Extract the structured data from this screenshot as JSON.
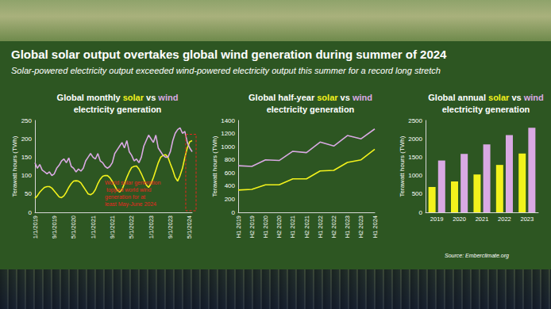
{
  "header": {
    "title": "Global solar output overtakes global wind generation during summer of 2024",
    "subtitle": "Solar-powered electricity output exceeded wind-powered electricity output this summer for a record long stretch"
  },
  "chart_data": [
    {
      "type": "line",
      "title": "Global monthly solar vs wind electricity generation",
      "y_label": "Terawatt hours (TWh)",
      "categories": [
        "1/1/2019",
        null,
        null,
        null,
        null,
        null,
        null,
        null,
        "9/1/2019",
        null,
        null,
        null,
        null,
        null,
        null,
        null,
        "5/1/2020",
        null,
        null,
        null,
        null,
        null,
        null,
        null,
        "1/1/2021",
        null,
        null,
        null,
        null,
        null,
        null,
        null,
        "9/1/2021",
        null,
        null,
        null,
        null,
        null,
        null,
        null,
        "5/1/2022",
        null,
        null,
        null,
        null,
        null,
        null,
        null,
        "1/1/2023",
        null,
        null,
        null,
        null,
        null,
        null,
        null,
        "9/1/2023",
        null,
        null,
        null,
        null,
        null,
        null,
        null,
        "5/1/2024",
        null
      ],
      "series": [
        {
          "name": "solar",
          "color": "#f2f21c",
          "values": [
            38,
            45,
            55,
            62,
            68,
            70,
            70,
            66,
            58,
            50,
            42,
            40,
            45,
            55,
            68,
            78,
            85,
            86,
            85,
            80,
            70,
            60,
            50,
            48,
            52,
            62,
            78,
            90,
            98,
            100,
            100,
            94,
            84,
            72,
            60,
            55,
            62,
            78,
            95,
            110,
            122,
            125,
            126,
            118,
            105,
            90,
            75,
            68,
            78,
            95,
            115,
            135,
            150,
            155,
            157,
            150,
            132,
            115,
            95,
            85,
            100,
            120,
            150,
            175,
            192,
            195
          ]
        },
        {
          "name": "wind",
          "color": "#d9a9e3",
          "values": [
            135,
            120,
            130,
            115,
            110,
            105,
            110,
            100,
            105,
            120,
            128,
            140,
            145,
            135,
            148,
            125,
            120,
            110,
            118,
            112,
            120,
            140,
            150,
            160,
            150,
            145,
            160,
            140,
            135,
            125,
            120,
            125,
            135,
            160,
            170,
            180,
            190,
            175,
            195,
            165,
            155,
            140,
            145,
            135,
            150,
            180,
            195,
            210,
            200,
            190,
            210,
            175,
            165,
            155,
            150,
            150,
            165,
            195,
            215,
            225,
            230,
            215,
            220,
            190,
            175,
            165
          ]
        }
      ],
      "ylim": [
        0,
        250
      ],
      "yticks": [
        0,
        50,
        100,
        150,
        200,
        250
      ],
      "grid": false,
      "annotations": [
        {
          "text": "World solar generation topped world wind generation for at least May-June 2024",
          "color": "#e8271f"
        }
      ]
    },
    {
      "type": "line",
      "title": "Global half-year solar vs wind electricity generation",
      "y_label": "Terawatt hours (TWh)",
      "categories": [
        "H1 2019",
        "H2 2019",
        "H1 2020",
        "H2 2020",
        "H1 2021",
        "H2 2021",
        "H1 2022",
        "H2 2022",
        "H1 2023",
        "H2 2023",
        "H1 2024"
      ],
      "series": [
        {
          "name": "solar",
          "color": "#f2f21c",
          "values": [
            340,
            350,
            420,
            420,
            510,
            510,
            630,
            640,
            760,
            800,
            960
          ]
        },
        {
          "name": "wind",
          "color": "#d9a9e3",
          "values": [
            710,
            700,
            800,
            790,
            930,
            910,
            1070,
            1010,
            1170,
            1120,
            1270
          ]
        }
      ],
      "ylim": [
        0,
        1400
      ],
      "yticks": [
        0,
        200,
        400,
        600,
        800,
        1000,
        1200,
        1400
      ],
      "grid": false
    },
    {
      "type": "bar",
      "title": "Global annual solar vs wind electricity generation",
      "y_label": "Terawatt hours (TWh)",
      "categories": [
        "2019",
        "2020",
        "2021",
        "2022",
        "2023"
      ],
      "series": [
        {
          "name": "solar",
          "color": "#f2f21c",
          "values": [
            690,
            840,
            1030,
            1290,
            1600
          ]
        },
        {
          "name": "wind",
          "color": "#d9a9e3",
          "values": [
            1410,
            1590,
            1850,
            2100,
            2300
          ]
        }
      ],
      "ylim": [
        0,
        2500
      ],
      "yticks": [
        0,
        500,
        1000,
        1500,
        2000,
        2500
      ],
      "grid": false,
      "annotations": [
        {
          "text": "Source: Emberclimate.org",
          "color": "#ffffff"
        }
      ]
    }
  ]
}
